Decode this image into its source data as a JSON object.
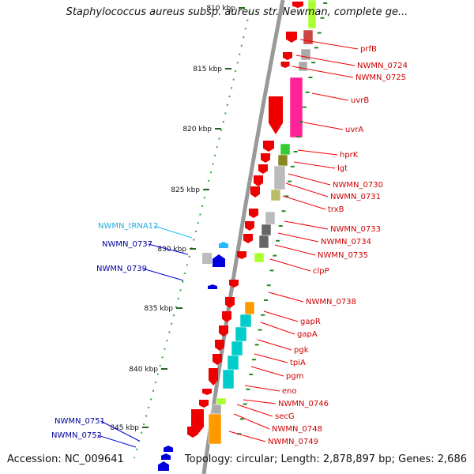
{
  "title": "Staphylococcus aureus subsp. aureus str. Newman, complete ge...",
  "accession": "Accession: NC_009641",
  "summary": "Topology: circular; Length: 2,878,897 bp; Genes: 2,686",
  "colors": {
    "backbone": "#999999",
    "forward_gene": "#ee0000",
    "reverse_gene": "#0000dd",
    "trna": "#22bbff",
    "ruler": "#226622",
    "forward_label": "#cc0000",
    "reverse_label": "#000099",
    "trna_label": "#22aadd"
  },
  "ruler_ticks": [
    "810 kbp",
    "815 kbp",
    "820 kbp",
    "825 kbp",
    "830 kbp",
    "835 kbp",
    "840 kbp",
    "845 kbp"
  ],
  "forward_labels": [
    "prfB",
    "NWMN_0724",
    "NWMN_0725",
    "uvrB",
    "uvrA",
    "hprK",
    "lgt",
    "NWMN_0730",
    "NWMN_0731",
    "trxB",
    "NWMN_0733",
    "NWMN_0734",
    "NWMN_0735",
    "clpP",
    "NWMN_0738",
    "gapR",
    "gapA",
    "pgk",
    "tpiA",
    "pgm",
    "eno",
    "NWMN_0746",
    "secG",
    "NWMN_0748",
    "NWMN_0749"
  ],
  "reverse_labels": [
    "NWMN_tRNA12",
    "NWMN_0737",
    "NWMN_0739",
    "NWMN_0751",
    "NWMN_0752"
  ]
}
